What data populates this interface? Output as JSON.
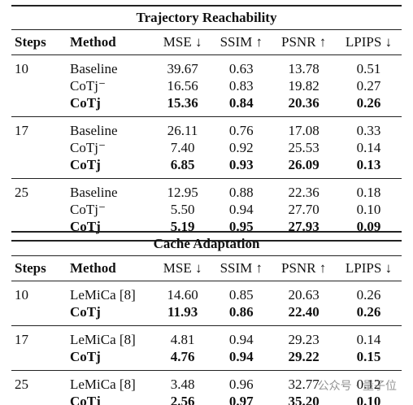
{
  "sections": [
    {
      "title": "Trajectory Reachability",
      "header": [
        "Steps",
        "Method",
        "MSE ↓",
        "SSIM ↑",
        "PSNR ↑",
        "LPIPS ↓"
      ],
      "groups": [
        {
          "steps": "10",
          "rows": [
            [
              "Baseline",
              "39.67",
              "0.63",
              "13.78",
              "0.51"
            ],
            [
              "CoTj⁻",
              "16.56",
              "0.83",
              "19.82",
              "0.27"
            ],
            [
              "CoTj",
              "15.36",
              "0.84",
              "20.36",
              "0.26"
            ]
          ]
        },
        {
          "steps": "17",
          "rows": [
            [
              "Baseline",
              "26.11",
              "0.76",
              "17.08",
              "0.33"
            ],
            [
              "CoTj⁻",
              "7.40",
              "0.92",
              "25.53",
              "0.14"
            ],
            [
              "CoTj",
              "6.85",
              "0.93",
              "26.09",
              "0.13"
            ]
          ]
        },
        {
          "steps": "25",
          "rows": [
            [
              "Baseline",
              "12.95",
              "0.88",
              "22.36",
              "0.18"
            ],
            [
              "CoTj⁻",
              "5.50",
              "0.94",
              "27.70",
              "0.10"
            ],
            [
              "CoTj",
              "5.19",
              "0.95",
              "27.93",
              "0.09"
            ]
          ]
        }
      ]
    },
    {
      "title": "Cache Adaptation",
      "header": [
        "Steps",
        "Method",
        "MSE ↓",
        "SSIM ↑",
        "PSNR ↑",
        "LPIPS ↓"
      ],
      "groups": [
        {
          "steps": "10",
          "rows": [
            [
              "LeMiCa [8]",
              "14.60",
              "0.85",
              "20.63",
              "0.26"
            ],
            [
              "CoTj",
              "11.93",
              "0.86",
              "22.40",
              "0.26"
            ]
          ]
        },
        {
          "steps": "17",
          "rows": [
            [
              "LeMiCa [8]",
              "4.81",
              "0.94",
              "29.23",
              "0.14"
            ],
            [
              "CoTj",
              "4.76",
              "0.94",
              "29.22",
              "0.15"
            ]
          ]
        },
        {
          "steps": "25",
          "rows": [
            [
              "LeMiCa [8]",
              "3.48",
              "0.96",
              "32.77",
              "0.12"
            ],
            [
              "CoTj",
              "2.56",
              "0.97",
              "35.20",
              "0.10"
            ]
          ]
        }
      ]
    }
  ],
  "watermark": "公众号 · 量子位"
}
